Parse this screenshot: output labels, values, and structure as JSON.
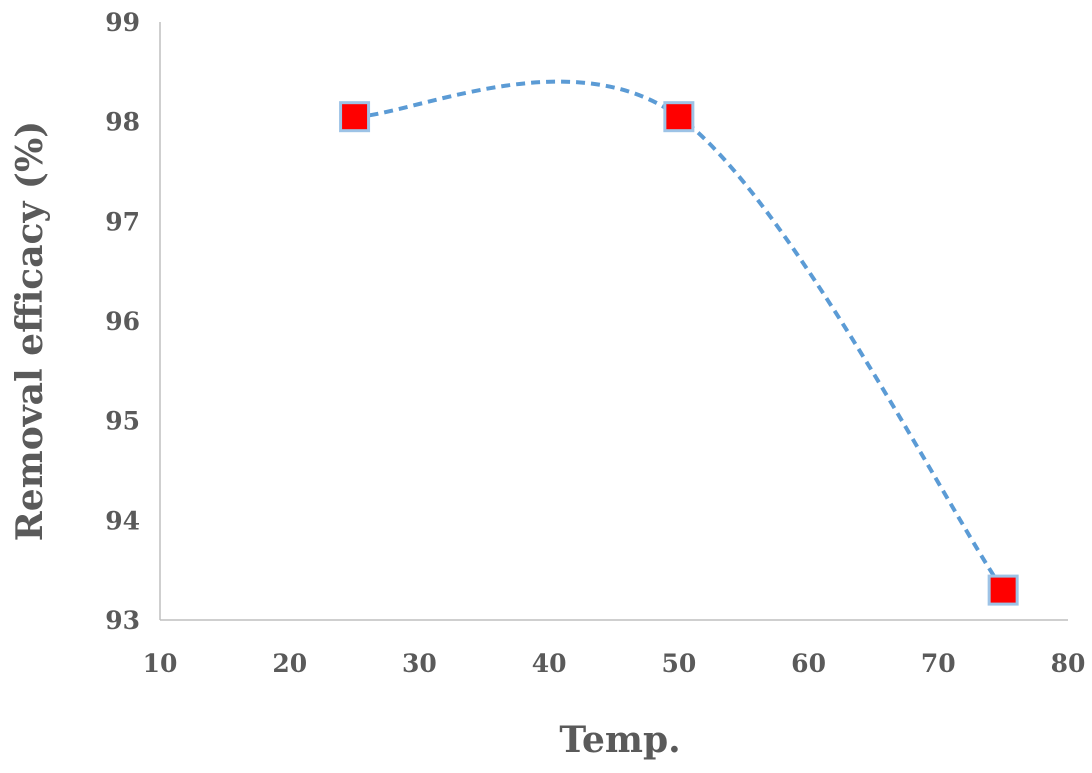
{
  "chart_data": {
    "type": "line",
    "title": "",
    "xlabel": "Temp.",
    "ylabel": "Removal efficacy (%)",
    "xlim": [
      10,
      80
    ],
    "ylim": [
      93,
      99
    ],
    "xticks": [
      "10",
      "20",
      "30",
      "40",
      "50",
      "60",
      "70",
      "80"
    ],
    "yticks": [
      "93",
      "94",
      "95",
      "96",
      "97",
      "98",
      "99"
    ],
    "grid": false,
    "legend": "none",
    "series": [
      {
        "x": [
          25,
          50,
          75
        ],
        "y": [
          98.05,
          98.05,
          93.3
        ],
        "line_style": "dashed-smooth",
        "line_color": "#5b9bd5",
        "marker": "square",
        "marker_color": "#ff0000",
        "marker_edge_color": "#9dc3e6"
      }
    ]
  }
}
